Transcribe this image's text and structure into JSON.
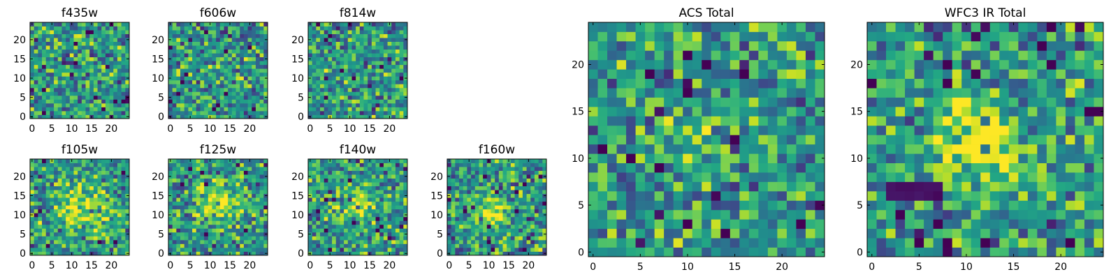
{
  "chart_data": {
    "type": "heatmap",
    "colormap": "viridis",
    "panels": [
      {
        "id": "f435w",
        "title": "f435w",
        "size": 25,
        "xlim": [
          -0.5,
          24.5
        ],
        "ylim": [
          -0.5,
          24.5
        ],
        "xticks": [
          0,
          5,
          10,
          15,
          20
        ],
        "yticks": [
          0,
          5,
          10,
          15,
          20
        ],
        "seed": 11,
        "blob": null
      },
      {
        "id": "f606w",
        "title": "f606w",
        "size": 25,
        "xlim": [
          -0.5,
          24.5
        ],
        "ylim": [
          -0.5,
          24.5
        ],
        "xticks": [
          0,
          5,
          10,
          15,
          20
        ],
        "yticks": [
          0,
          5,
          10,
          15,
          20
        ],
        "seed": 23,
        "blob": null
      },
      {
        "id": "f814w",
        "title": "f814w",
        "size": 25,
        "xlim": [
          -0.5,
          24.5
        ],
        "ylim": [
          -0.5,
          24.5
        ],
        "xticks": [
          0,
          5,
          10,
          15,
          20
        ],
        "yticks": [
          0,
          5,
          10,
          15,
          20
        ],
        "seed": 37,
        "blob": null
      },
      {
        "id": "f105w",
        "title": "f105w",
        "size": 25,
        "xlim": [
          -0.5,
          24.5
        ],
        "ylim": [
          -0.5,
          24.5
        ],
        "xticks": [
          0,
          5,
          10,
          15,
          20
        ],
        "yticks": [
          0,
          5,
          10,
          15,
          20
        ],
        "seed": 41,
        "blob": {
          "cx": 12,
          "cy": 12,
          "sigma": 4.5,
          "amp": 0.35
        }
      },
      {
        "id": "f125w",
        "title": "f125w",
        "size": 25,
        "xlim": [
          -0.5,
          24.5
        ],
        "ylim": [
          -0.5,
          24.5
        ],
        "xticks": [
          0,
          5,
          10,
          15,
          20
        ],
        "yticks": [
          0,
          5,
          10,
          15,
          20
        ],
        "seed": 53,
        "blob": {
          "cx": 12,
          "cy": 13,
          "sigma": 3.5,
          "amp": 0.4
        }
      },
      {
        "id": "f140w",
        "title": "f140w",
        "size": 25,
        "xlim": [
          -0.5,
          24.5
        ],
        "ylim": [
          -0.5,
          24.5
        ],
        "xticks": [
          0,
          5,
          10,
          15,
          20
        ],
        "yticks": [
          0,
          5,
          10,
          15,
          20
        ],
        "seed": 67,
        "blob": {
          "cx": 12,
          "cy": 13,
          "sigma": 3.0,
          "amp": 0.35
        }
      },
      {
        "id": "f160w",
        "title": "f160w",
        "size": 25,
        "xlim": [
          -0.5,
          24.5
        ],
        "ylim": [
          -0.5,
          24.5
        ],
        "xticks": [
          0,
          5,
          10,
          15,
          20
        ],
        "yticks": [
          0,
          5,
          10,
          15,
          20
        ],
        "seed": 79,
        "blob": {
          "cx": 11,
          "cy": 11,
          "sigma": 2.5,
          "amp": 0.45
        }
      },
      {
        "id": "acs-total",
        "title": "ACS Total",
        "size": 25,
        "xlim": [
          -0.5,
          24.5
        ],
        "ylim": [
          -0.5,
          24.5
        ],
        "xticks": [
          0,
          5,
          10,
          15,
          20
        ],
        "yticks": [
          0,
          5,
          10,
          15,
          20
        ],
        "seed": 97,
        "blob": {
          "cx": 11,
          "cy": 11,
          "sigma": 2.0,
          "amp": 0.2
        }
      },
      {
        "id": "wfc3-ir-total",
        "title": "WFC3 IR Total",
        "size": 25,
        "xlim": [
          -0.5,
          24.5
        ],
        "ylim": [
          -0.5,
          24.5
        ],
        "xticks": [
          0,
          5,
          10,
          15,
          20
        ],
        "yticks": [
          0,
          5,
          10,
          15,
          20
        ],
        "seed": 131,
        "blob": {
          "cx": 11.5,
          "cy": 12,
          "sigma": 3.0,
          "amp": 0.5
        },
        "dark_band": {
          "x0": 2,
          "x1": 7,
          "y0": 6,
          "y1": 7
        }
      }
    ]
  }
}
